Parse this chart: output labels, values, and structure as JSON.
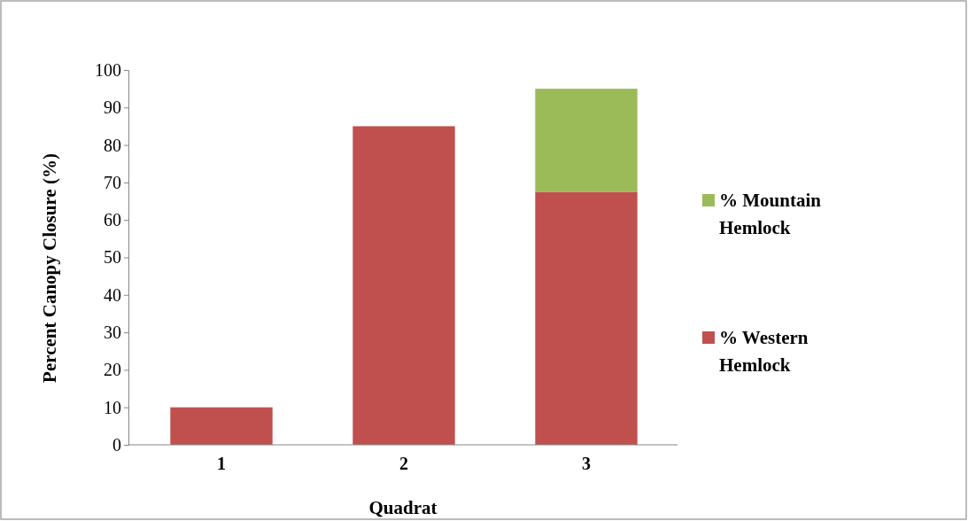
{
  "chart_data": {
    "type": "bar",
    "stacked": true,
    "xlabel": "Quadrat",
    "ylabel": "Percent Canopy Closure (%)",
    "categories": [
      "1",
      "2",
      "3"
    ],
    "series": [
      {
        "name": "% Western Hemlock",
        "color": "#c0504d",
        "values": [
          10,
          85,
          67.5
        ]
      },
      {
        "name": "% Mountain Hemlock",
        "color": "#9bbb59",
        "values": [
          null,
          null,
          27.5
        ]
      }
    ],
    "ylim": [
      0,
      100
    ],
    "yticks": [
      0,
      10,
      20,
      30,
      40,
      50,
      60,
      70,
      80,
      90,
      100
    ],
    "grid": false,
    "legend": "right"
  }
}
